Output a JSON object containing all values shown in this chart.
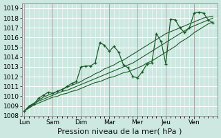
{
  "background_color": "#cce8e0",
  "grid_color": "#ffffff",
  "line_color": "#1a5c28",
  "xlabel": "Pression niveau de la mer( hPa )",
  "ylim": [
    1008,
    1019.5
  ],
  "yticks": [
    1008,
    1009,
    1010,
    1011,
    1012,
    1013,
    1014,
    1015,
    1016,
    1017,
    1018,
    1019
  ],
  "day_labels": [
    "Lun",
    "Sam",
    "Dim",
    "Mar",
    "Mer",
    "Jeu",
    "Ven"
  ],
  "day_positions": [
    0,
    6,
    12,
    18,
    24,
    30,
    36
  ],
  "xlim": [
    -0.5,
    41
  ],
  "series_main": [
    1008.5,
    1009.0,
    1009.2,
    1009.8,
    1010.1,
    1010.4,
    1010.3,
    1010.5,
    1010.7,
    1011.0,
    1011.3,
    1011.5,
    1013.0,
    1013.1,
    1013.1,
    1013.4,
    1015.5,
    1015.2,
    1014.6,
    1015.1,
    1014.5,
    1013.2,
    1012.9,
    1012.0,
    1011.9,
    1012.5,
    1013.3,
    1013.4,
    1016.4,
    1015.6,
    1013.3,
    1017.9,
    1017.8,
    1017.0,
    1016.5,
    1017.0,
    1018.5,
    1018.6,
    1018.5,
    1017.8,
    1017.5
  ],
  "series_smooth1": [
    1008.5,
    1009.0,
    1009.3,
    1009.6,
    1009.9,
    1010.1,
    1010.3,
    1010.5,
    1010.7,
    1010.9,
    1011.1,
    1011.3,
    1011.5,
    1011.8,
    1012.0,
    1012.3,
    1012.5,
    1012.8,
    1013.0,
    1013.2,
    1013.5,
    1013.7,
    1014.0,
    1014.3,
    1014.6,
    1014.9,
    1015.2,
    1015.5,
    1015.8,
    1016.1,
    1016.4,
    1016.6,
    1016.8,
    1017.0,
    1017.2,
    1017.4,
    1017.6,
    1017.8,
    1018.0,
    1018.1,
    1018.2
  ],
  "series_smooth2": [
    1008.5,
    1008.9,
    1009.2,
    1009.5,
    1009.7,
    1009.9,
    1010.1,
    1010.3,
    1010.5,
    1010.6,
    1010.8,
    1011.0,
    1011.2,
    1011.4,
    1011.6,
    1011.8,
    1012.0,
    1012.2,
    1012.4,
    1012.6,
    1012.8,
    1013.0,
    1013.2,
    1013.4,
    1013.7,
    1014.0,
    1014.3,
    1014.6,
    1014.9,
    1015.2,
    1015.5,
    1015.8,
    1016.1,
    1016.4,
    1016.7,
    1017.0,
    1017.2,
    1017.4,
    1017.6,
    1017.8,
    1018.0
  ],
  "series_smooth3": [
    1008.5,
    1008.8,
    1009.1,
    1009.3,
    1009.5,
    1009.7,
    1009.9,
    1010.0,
    1010.2,
    1010.3,
    1010.5,
    1010.6,
    1010.8,
    1011.0,
    1011.2,
    1011.4,
    1011.5,
    1011.7,
    1011.9,
    1012.0,
    1012.2,
    1012.4,
    1012.5,
    1012.7,
    1012.9,
    1013.1,
    1013.4,
    1013.6,
    1013.9,
    1014.2,
    1014.5,
    1014.8,
    1015.1,
    1015.5,
    1015.8,
    1016.1,
    1016.5,
    1016.8,
    1017.1,
    1017.4,
    1017.6
  ],
  "xlabel_fontsize": 8,
  "tick_fontsize": 6.5
}
